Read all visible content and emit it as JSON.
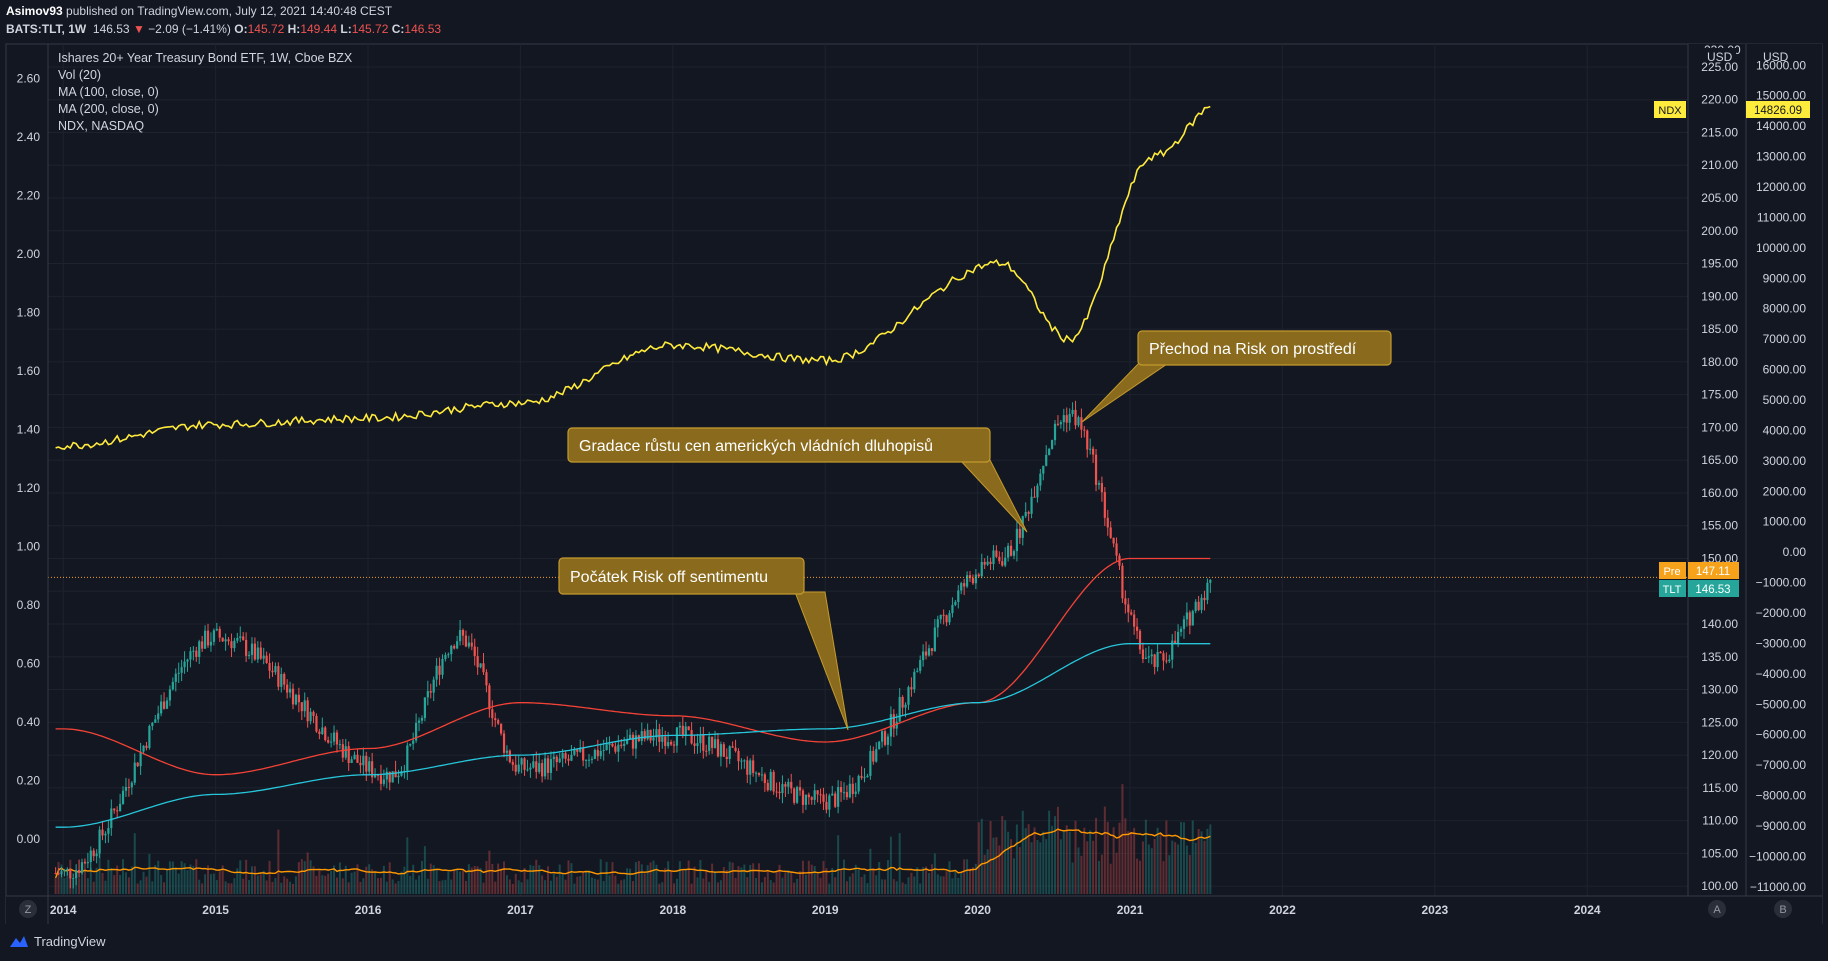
{
  "header": {
    "author": "Asimov93",
    "published": "published on TradingView.com, July 12, 2021 14:40:48 CEST",
    "symbol": "BATS:TLT, 1W",
    "last": "146.53",
    "change": "−2.09 (−1.41%)",
    "o_label": "O:",
    "o": "145.72",
    "h_label": "H:",
    "h": "149.44",
    "l_label": "L:",
    "l": "145.72",
    "c_label": "C:",
    "c": "146.53"
  },
  "footer": {
    "brand": "TradingView"
  },
  "colors": {
    "background": "#131722",
    "up": "#26a69a",
    "down": "#ef5350",
    "ndx": "#ffeb3b",
    "ma100": "#f44336",
    "ma200": "#26c6da",
    "vol_ma": "#ff9800",
    "annotation_bg": "#8a6b1e",
    "annotation_border": "#c49a2c"
  },
  "chart_data": {
    "type": "line",
    "title": "Ishares 20+ Year Treasury Bond ETF, 1W, Cboe BZX",
    "legend": [
      "Ishares 20+ Year Treasury Bond ETF, 1W, Cboe BZX",
      "Vol (20)",
      "MA (100, close, 0)",
      "MA (200, close, 0)",
      "NDX, NASDAQ"
    ],
    "x_ticks": [
      "2014",
      "2015",
      "2016",
      "2017",
      "2018",
      "2019",
      "2020",
      "2021",
      "2022",
      "2023",
      "2024"
    ],
    "left_axis": {
      "ticks": [
        "2.60",
        "2.40",
        "2.20",
        "2.00",
        "1.80",
        "1.60",
        "1.40",
        "1.20",
        "1.00",
        "0.80",
        "0.60",
        "0.40",
        "0.20",
        "0.00"
      ]
    },
    "price_axis": {
      "label": "USD",
      "ticks": [
        "225.00",
        "220.00",
        "215.00",
        "210.00",
        "205.00",
        "200.00",
        "195.00",
        "190.00",
        "185.00",
        "180.00",
        "175.00",
        "170.00",
        "165.00",
        "160.00",
        "155.00",
        "150.00",
        "145.00",
        "140.00",
        "135.00",
        "130.00",
        "125.00",
        "120.00",
        "115.00",
        "110.00",
        "105.00",
        "100.00"
      ],
      "top_cut": "230.00",
      "range": [
        98.5,
        228.5
      ]
    },
    "ndx_axis": {
      "label": "USD",
      "ticks": [
        "16000.00",
        "15000.00",
        "14000.00",
        "13000.00",
        "12000.00",
        "11000.00",
        "10000.00",
        "9000.00",
        "8000.00",
        "7000.00",
        "6000.00",
        "5000.00",
        "4000.00",
        "3000.00",
        "2000.00",
        "1000.00",
        "0.00",
        "−1000.00",
        "−2000.00",
        "−3000.00",
        "−4000.00",
        "−5000.00",
        "−6000.00",
        "−7000.00",
        "−8000.00",
        "−9000.00",
        "−10000.00",
        "−11000.00"
      ],
      "range": [
        -11300,
        16700
      ]
    },
    "series": [
      {
        "name": "TLT",
        "axis": "price",
        "x": [
          "2014",
          "2015",
          "2016",
          "2016",
          "2017",
          "2018",
          "2019",
          "2020",
          "2020",
          "2021",
          "2021"
        ],
        "y": [
          102,
          138,
          117,
          138,
          118,
          123,
          113,
          150,
          172,
          134,
          147
        ]
      },
      {
        "name": "MA (100, close, 0)",
        "axis": "price",
        "x": [
          "2014",
          "2015",
          "2016",
          "2017",
          "2018",
          "2019",
          "2020",
          "2021"
        ],
        "y": [
          124,
          117,
          121,
          128,
          126,
          122,
          128,
          150
        ]
      },
      {
        "name": "MA (200, close, 0)",
        "axis": "price",
        "x": [
          "2014",
          "2015",
          "2016",
          "2017",
          "2018",
          "2019",
          "2020",
          "2021"
        ],
        "y": [
          109,
          114,
          117,
          120,
          123,
          124,
          128,
          137
        ]
      },
      {
        "name": "NDX",
        "axis": "ndx",
        "x": [
          "2014",
          "2015",
          "2016",
          "2017",
          "2018",
          "2019",
          "2020",
          "2020",
          "2021",
          "2021"
        ],
        "y": [
          3500,
          4200,
          4400,
          4900,
          6800,
          6300,
          9500,
          7000,
          13000,
          14826
        ]
      }
    ],
    "last_labels": [
      {
        "tag": "NDX",
        "value": "14826.09"
      },
      {
        "tag": "Pre",
        "value": "147.11"
      },
      {
        "tag": "TLT",
        "value": "146.53"
      }
    ],
    "annotations": [
      "Gradace růstu cen amerických vládních dluhopisů",
      "Přechod na Risk on prostředí",
      "Počátek Risk off sentimentu"
    ],
    "corner_buttons": [
      "Z",
      "A",
      "B"
    ]
  }
}
